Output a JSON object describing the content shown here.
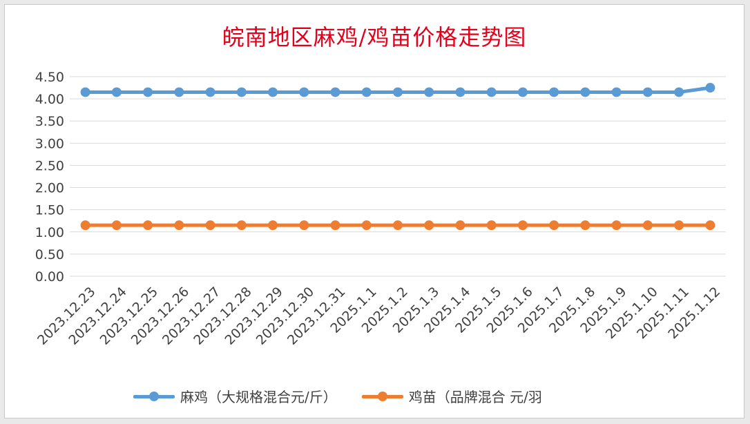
{
  "chart_data": {
    "type": "line",
    "title": "皖南地区麻鸡/鸡苗价格走势图",
    "xlabel": "",
    "ylabel": "",
    "ylim": [
      0,
      4.5
    ],
    "yticks": [
      "0.00",
      "0.50",
      "1.00",
      "1.50",
      "2.00",
      "2.50",
      "3.00",
      "3.50",
      "4.00",
      "4.50"
    ],
    "grid": true,
    "legend_position": "bottom",
    "categories": [
      "2023.12.23",
      "2023.12.24",
      "2023.12.25",
      "2023.12.26",
      "2023.12.27",
      "2023.12.28",
      "2023.12.29",
      "2023.12.30",
      "2023.12.31",
      "2025.1.1",
      "2025.1.2",
      "2025.1.3",
      "2025.1.4",
      "2025.1.5",
      "2025.1.6",
      "2025.1.7",
      "2025.1.8",
      "2025.1.9",
      "2025.1.10",
      "2025.1.11",
      "2025.1.12"
    ],
    "series": [
      {
        "name": "麻鸡（大规格混合元/斤）",
        "color": "#5b9bd5",
        "values": [
          4.15,
          4.15,
          4.15,
          4.15,
          4.15,
          4.15,
          4.15,
          4.15,
          4.15,
          4.15,
          4.15,
          4.15,
          4.15,
          4.15,
          4.15,
          4.15,
          4.15,
          4.15,
          4.15,
          4.15,
          4.25
        ]
      },
      {
        "name": "鸡苗（品牌混合 元/羽",
        "color": "#ed7d31",
        "values": [
          1.15,
          1.15,
          1.15,
          1.15,
          1.15,
          1.15,
          1.15,
          1.15,
          1.15,
          1.15,
          1.15,
          1.15,
          1.15,
          1.15,
          1.15,
          1.15,
          1.15,
          1.15,
          1.15,
          1.15,
          1.15
        ]
      }
    ]
  }
}
